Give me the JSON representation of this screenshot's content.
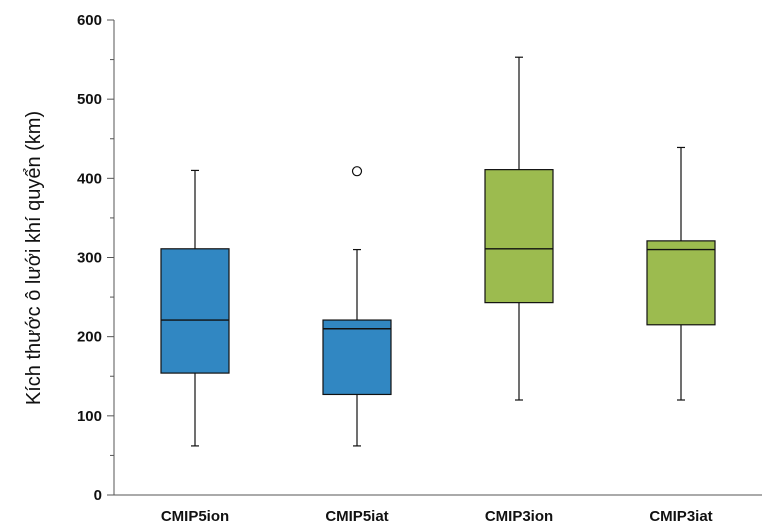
{
  "chart_data": {
    "type": "box",
    "title": "",
    "xlabel": "",
    "ylabel": "Kích thước ô lưới khí quyển (km)",
    "ylim": [
      0,
      600
    ],
    "yticks": [
      0,
      100,
      200,
      300,
      400,
      500,
      600
    ],
    "grid": false,
    "categories": [
      "CMIP5ion",
      "CMIP5iat",
      "CMIP3ion",
      "CMIP3iat"
    ],
    "boxes": [
      {
        "category": "CMIP5ion",
        "min": 62,
        "q1": 154,
        "median": 221,
        "q3": 311,
        "max": 410,
        "outliers": [],
        "color": "#3187c2"
      },
      {
        "category": "CMIP5iat",
        "min": 62,
        "q1": 127,
        "median": 210,
        "q3": 221,
        "max": 310,
        "outliers": [
          409
        ],
        "color": "#3187c2"
      },
      {
        "category": "CMIP3ion",
        "min": 120,
        "q1": 243,
        "median": 311,
        "q3": 411,
        "max": 553,
        "outliers": [],
        "color": "#9cbb4f"
      },
      {
        "category": "CMIP3iat",
        "min": 120,
        "q1": 215,
        "median": 310,
        "q3": 321,
        "max": 439,
        "outliers": [],
        "color": "#9cbb4f"
      }
    ]
  }
}
